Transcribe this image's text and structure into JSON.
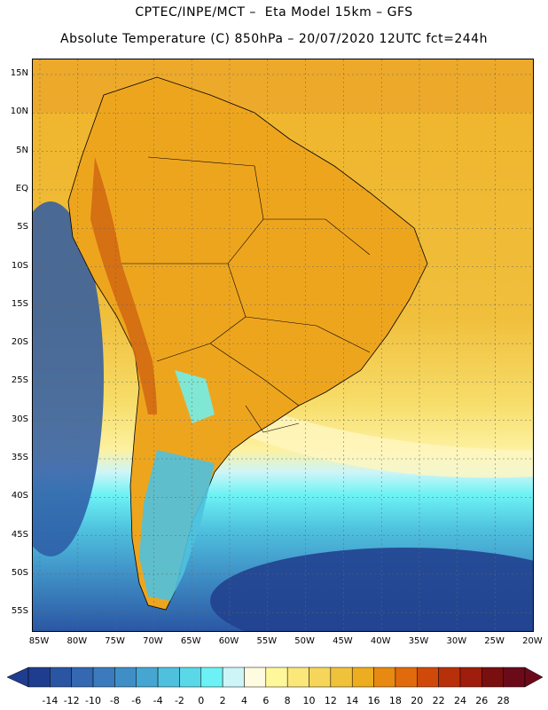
{
  "header": {
    "line1": "CPTEC/INPE/MCT –  Eta Model 15km – GFS",
    "line2": "Absolute Temperature (C) 850hPa – 20/07/2020 12UTC fct=244h"
  },
  "map": {
    "lat_ticks": [
      "15N",
      "10N",
      "5N",
      "EQ",
      "5S",
      "10S",
      "15S",
      "20S",
      "25S",
      "30S",
      "35S",
      "40S",
      "45S",
      "50S",
      "55S"
    ],
    "lon_ticks": [
      "85W",
      "80W",
      "75W",
      "70W",
      "65W",
      "60W",
      "55W",
      "50W",
      "45W",
      "40W",
      "35W",
      "30W",
      "25W",
      "20W"
    ],
    "legend": {
      "labels": [
        "-14",
        "-12",
        "-10",
        "-8",
        "-6",
        "-4",
        "-2",
        "0",
        "2",
        "4",
        "6",
        "8",
        "10",
        "12",
        "14",
        "16",
        "18",
        "20",
        "22",
        "24",
        "26",
        "28"
      ],
      "colors": [
        "#1f3d8f",
        "#2a55a3",
        "#3468b0",
        "#3b7bbd",
        "#3f8fc6",
        "#46a6d2",
        "#4fc1de",
        "#5ad8e8",
        "#6cf2f4",
        "#cdf5f8",
        "#fffbe0",
        "#fff89b",
        "#fbe77a",
        "#f6d65a",
        "#f0c23c",
        "#ecad21",
        "#e88a12",
        "#e06a0c",
        "#cf4a0a",
        "#b8300a",
        "#9e1d0c",
        "#7a0f0f",
        "#6b0b1a"
      ]
    }
  }
}
